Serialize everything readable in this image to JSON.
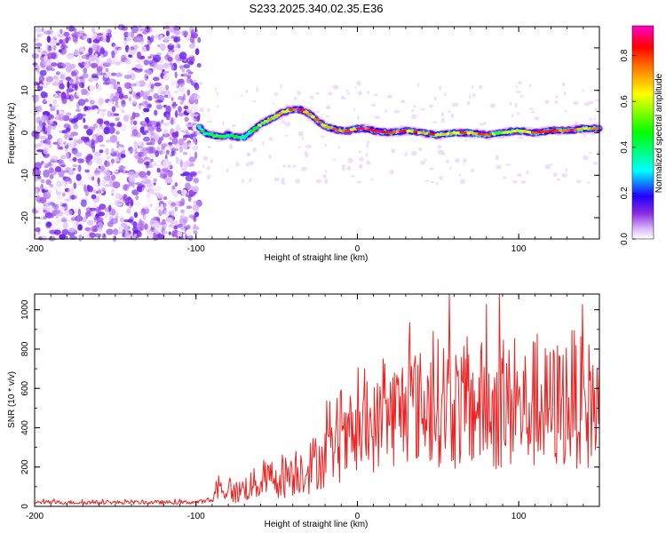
{
  "title": "S233.2025.340.02.35.E36",
  "chart_data": [
    {
      "type": "heatmap",
      "name": "spectrogram",
      "xlabel": "Height of straight line (km)",
      "ylabel": "Frequency (Hz)",
      "xlim": [
        -200,
        150
      ],
      "ylim": [
        -25,
        25
      ],
      "xticks": [
        -200,
        -100,
        0,
        100
      ],
      "xtick_labels": [
        "-200",
        "-100",
        "0",
        "100"
      ],
      "yticks": [
        -20,
        -10,
        0,
        10,
        20
      ],
      "ytick_labels": [
        "-20",
        "-10",
        "0",
        "10",
        "20"
      ],
      "colorbar": {
        "label": "Normalized spectral amplitude",
        "range": [
          0,
          0.93
        ],
        "ticks": [
          0,
          0.2,
          0.4,
          0.6,
          0.8
        ],
        "tick_labels": [
          "0.0",
          "0.2",
          "0.4",
          "0.6",
          "0.8"
        ],
        "colors": [
          "#ffffff",
          "#d8b4f8",
          "#8a2be2",
          "#4b00ff",
          "#0000ff",
          "#00ffff",
          "#00ff00",
          "#ffff00",
          "#ff8800",
          "#ff0000",
          "#ff00aa"
        ]
      },
      "noise_region": {
        "x_range": [
          -200,
          -98
        ],
        "f_range": [
          -25,
          25
        ],
        "amplitude_range": [
          0.0,
          0.15
        ]
      },
      "ridge": {
        "x": [
          -98,
          -95,
          -90,
          -85,
          -80,
          -75,
          -70,
          -65,
          -60,
          -55,
          -50,
          -45,
          -40,
          -35,
          -30,
          -25,
          -20,
          -15,
          -10,
          -5,
          0,
          5,
          10,
          20,
          30,
          40,
          50,
          60,
          70,
          80,
          90,
          100,
          110,
          120,
          130,
          140,
          150
        ],
        "f": [
          1.5,
          0,
          -0.5,
          -1,
          -0.5,
          -1,
          -1,
          0.5,
          2,
          3,
          4,
          5,
          5.5,
          5.5,
          4.5,
          3,
          1.5,
          1,
          0.5,
          0.5,
          1,
          1,
          0.5,
          0,
          0.5,
          0,
          -0.5,
          0,
          0,
          -0.5,
          0,
          0.5,
          0,
          0.5,
          0.5,
          1,
          1
        ],
        "amplitude": [
          0.3,
          0.5,
          0.45,
          0.5,
          0.4,
          0.45,
          0.4,
          0.5,
          0.6,
          0.65,
          0.7,
          0.8,
          0.9,
          0.92,
          0.85,
          0.8,
          0.75,
          0.7,
          0.8,
          0.85,
          0.8,
          0.85,
          0.9,
          0.85,
          0.8,
          0.75,
          0.8,
          0.7,
          0.75,
          0.8,
          0.6,
          0.7,
          0.75,
          0.8,
          0.9,
          0.75,
          0.7
        ]
      }
    },
    {
      "type": "line",
      "name": "snr",
      "xlabel": "Height of straight line (km)",
      "ylabel": "SNR (10 * v/v)",
      "xlim": [
        -200,
        150
      ],
      "ylim": [
        0,
        1080
      ],
      "xticks": [
        -200,
        -100,
        0,
        100
      ],
      "xtick_labels": [
        "-200",
        "-100",
        "0",
        "100"
      ],
      "yticks": [
        0,
        200,
        400,
        600,
        800,
        1000
      ],
      "ytick_labels": [
        "0",
        "200",
        "400",
        "600",
        "800",
        "1000"
      ],
      "series": [
        {
          "name": "SNR",
          "color": "#ee2222",
          "x": [
            -200,
            -190,
            -180,
            -170,
            -160,
            -150,
            -140,
            -130,
            -120,
            -110,
            -100,
            -95,
            -90,
            -87,
            -85,
            -80,
            -75,
            -70,
            -65,
            -60,
            -55,
            -50,
            -45,
            -40,
            -35,
            -30,
            -25,
            -20,
            -15,
            -10,
            -5,
            0,
            5,
            10,
            15,
            20,
            25,
            30,
            35,
            40,
            45,
            50,
            55,
            60,
            65,
            70,
            75,
            80,
            85,
            90,
            95,
            100,
            105,
            110,
            115,
            120,
            125,
            130,
            135,
            140,
            145,
            150
          ],
          "mean": [
            20,
            20,
            20,
            20,
            20,
            20,
            20,
            20,
            20,
            20,
            22,
            25,
            30,
            80,
            90,
            80,
            70,
            90,
            110,
            120,
            140,
            150,
            160,
            180,
            190,
            200,
            230,
            250,
            280,
            300,
            320,
            350,
            370,
            400,
            430,
            460,
            480,
            500,
            520,
            500,
            520,
            530,
            540,
            510,
            500,
            490,
            520,
            510,
            500,
            510,
            500,
            490,
            500,
            520,
            490,
            500,
            520,
            540,
            560,
            500,
            520,
            520
          ],
          "spread": [
            10,
            10,
            10,
            10,
            10,
            10,
            10,
            10,
            10,
            10,
            10,
            10,
            15,
            40,
            50,
            60,
            60,
            70,
            80,
            90,
            100,
            110,
            120,
            130,
            130,
            140,
            150,
            160,
            170,
            180,
            190,
            200,
            210,
            230,
            250,
            270,
            280,
            290,
            300,
            300,
            320,
            330,
            340,
            330,
            320,
            320,
            330,
            330,
            330,
            330,
            320,
            320,
            330,
            340,
            330,
            330,
            340,
            350,
            360,
            340,
            340,
            330
          ]
        }
      ]
    }
  ]
}
